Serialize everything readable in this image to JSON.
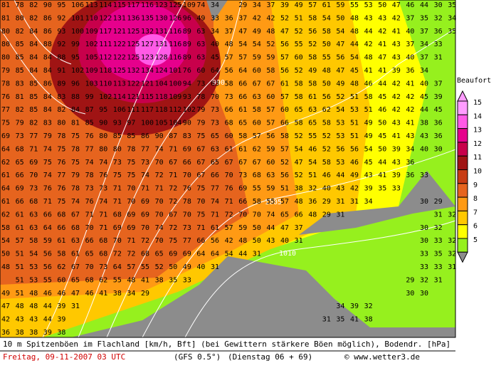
{
  "grid": [
    [
      81,
      78,
      82,
      90,
      95,
      106,
      113,
      114,
      115,
      117,
      116,
      123,
      125,
      109,
      74,
      34,
      null,
      29,
      34,
      37,
      39,
      49,
      57,
      61,
      59,
      55,
      53,
      50,
      47,
      46,
      44,
      30,
      35
    ],
    [
      81,
      80,
      82,
      86,
      92,
      101,
      110,
      122,
      131,
      136,
      135,
      130,
      126,
      96,
      49,
      33,
      36,
      37,
      42,
      42,
      52,
      51,
      58,
      54,
      50,
      48,
      43,
      43,
      42,
      37,
      35,
      32,
      34
    ],
    [
      80,
      82,
      84,
      86,
      93,
      100,
      109,
      117,
      121,
      125,
      132,
      131,
      116,
      89,
      63,
      34,
      37,
      47,
      49,
      48,
      47,
      52,
      56,
      58,
      54,
      48,
      44,
      42,
      41,
      40,
      37,
      36,
      35
    ],
    [
      80,
      85,
      84,
      88,
      92,
      99,
      102,
      111,
      122,
      125,
      127,
      131,
      116,
      89,
      63,
      40,
      48,
      54,
      54,
      52,
      56,
      55,
      52,
      50,
      47,
      44,
      42,
      41,
      43,
      37,
      34,
      33,
      null
    ],
    [
      80,
      85,
      84,
      84,
      88,
      95,
      105,
      112,
      122,
      125,
      123,
      128,
      116,
      89,
      63,
      45,
      57,
      57,
      59,
      59,
      57,
      60,
      58,
      55,
      56,
      54,
      48,
      47,
      43,
      40,
      37,
      31,
      null
    ],
    [
      79,
      85,
      84,
      84,
      91,
      102,
      109,
      118,
      125,
      132,
      134,
      124,
      101,
      76,
      60,
      64,
      56,
      64,
      60,
      58,
      56,
      52,
      49,
      48,
      47,
      45,
      41,
      41,
      39,
      36,
      34,
      null,
      null
    ],
    [
      78,
      83,
      85,
      86,
      89,
      96,
      103,
      110,
      113,
      122,
      121,
      104,
      100,
      94,
      73,
      63,
      58,
      66,
      67,
      67,
      61,
      58,
      58,
      50,
      49,
      48,
      46,
      44,
      42,
      41,
      40,
      37,
      null
    ],
    [
      76,
      81,
      85,
      84,
      83,
      88,
      99,
      102,
      114,
      121,
      115,
      118,
      109,
      93,
      78,
      70,
      73,
      66,
      63,
      60,
      57,
      58,
      61,
      56,
      52,
      51,
      58,
      45,
      42,
      42,
      45,
      39,
      null
    ],
    [
      77,
      82,
      85,
      84,
      82,
      84,
      87,
      95,
      106,
      111,
      117,
      118,
      112,
      102,
      79,
      73,
      66,
      61,
      58,
      57,
      60,
      65,
      63,
      62,
      54,
      53,
      51,
      46,
      42,
      42,
      44,
      45,
      null
    ],
    [
      75,
      79,
      82,
      83,
      80,
      81,
      85,
      90,
      93,
      97,
      100,
      105,
      104,
      90,
      79,
      73,
      68,
      65,
      60,
      57,
      66,
      58,
      65,
      58,
      53,
      51,
      49,
      50,
      43,
      41,
      38,
      36,
      null
    ],
    [
      69,
      73,
      77,
      79,
      78,
      75,
      76,
      80,
      85,
      85,
      86,
      90,
      87,
      83,
      75,
      65,
      60,
      58,
      57,
      56,
      58,
      52,
      55,
      52,
      53,
      51,
      49,
      45,
      41,
      43,
      43,
      36,
      null
    ],
    [
      64,
      68,
      71,
      74,
      75,
      78,
      77,
      80,
      80,
      78,
      77,
      74,
      71,
      69,
      67,
      63,
      61,
      61,
      62,
      59,
      57,
      54,
      46,
      52,
      56,
      56,
      54,
      50,
      39,
      34,
      40,
      30,
      null
    ],
    [
      62,
      65,
      69,
      75,
      76,
      75,
      74,
      74,
      73,
      75,
      73,
      70,
      67,
      66,
      67,
      65,
      67,
      67,
      67,
      60,
      52,
      47,
      54,
      58,
      53,
      46,
      45,
      44,
      43,
      36,
      null,
      null,
      null
    ],
    [
      61,
      66,
      70,
      74,
      77,
      79,
      78,
      76,
      75,
      75,
      74,
      72,
      71,
      70,
      67,
      66,
      70,
      73,
      68,
      63,
      56,
      52,
      51,
      46,
      44,
      49,
      43,
      41,
      39,
      36,
      33,
      null,
      null
    ],
    [
      64,
      69,
      73,
      76,
      76,
      78,
      73,
      73,
      71,
      70,
      71,
      71,
      72,
      76,
      75,
      77,
      76,
      69,
      55,
      59,
      51,
      38,
      32,
      40,
      43,
      42,
      39,
      35,
      33,
      null,
      null,
      null,
      null
    ],
    [
      61,
      66,
      68,
      71,
      75,
      74,
      76,
      74,
      71,
      70,
      69,
      70,
      72,
      78,
      70,
      74,
      71,
      66,
      58,
      55,
      57,
      48,
      36,
      29,
      31,
      31,
      34,
      null,
      null,
      null,
      30,
      29,
      null
    ],
    [
      62,
      61,
      63,
      66,
      68,
      67,
      71,
      71,
      68,
      69,
      69,
      70,
      67,
      70,
      75,
      71,
      72,
      70,
      70,
      74,
      65,
      66,
      48,
      29,
      31,
      null,
      null,
      null,
      null,
      null,
      null,
      31,
      32
    ],
    [
      58,
      61,
      63,
      64,
      66,
      68,
      70,
      71,
      69,
      69,
      70,
      74,
      72,
      73,
      71,
      61,
      57,
      59,
      50,
      44,
      47,
      37,
      null,
      null,
      null,
      null,
      null,
      null,
      null,
      null,
      30,
      32,
      null
    ],
    [
      54,
      57,
      58,
      59,
      61,
      63,
      66,
      68,
      70,
      71,
      72,
      70,
      75,
      77,
      66,
      56,
      42,
      48,
      50,
      43,
      40,
      31,
      null,
      null,
      null,
      null,
      null,
      null,
      null,
      null,
      30,
      33,
      32
    ],
    [
      50,
      51,
      54,
      56,
      58,
      61,
      65,
      68,
      72,
      72,
      68,
      65,
      69,
      69,
      64,
      64,
      54,
      44,
      31,
      null,
      null,
      null,
      null,
      null,
      null,
      null,
      null,
      null,
      null,
      null,
      33,
      35,
      32
    ],
    [
      48,
      51,
      53,
      56,
      62,
      67,
      70,
      73,
      64,
      57,
      55,
      52,
      50,
      49,
      40,
      31,
      null,
      null,
      null,
      null,
      null,
      null,
      null,
      null,
      null,
      null,
      null,
      null,
      null,
      null,
      33,
      33,
      31
    ],
    [
      null,
      51,
      53,
      55,
      60,
      65,
      68,
      62,
      55,
      48,
      41,
      38,
      35,
      33,
      null,
      null,
      null,
      null,
      null,
      null,
      null,
      null,
      null,
      null,
      null,
      null,
      null,
      null,
      null,
      29,
      32,
      31,
      null
    ],
    [
      49,
      51,
      48,
      46,
      46,
      47,
      46,
      41,
      38,
      34,
      29,
      null,
      null,
      null,
      null,
      null,
      null,
      null,
      null,
      null,
      null,
      null,
      null,
      null,
      null,
      null,
      null,
      null,
      null,
      30,
      30,
      null,
      null
    ],
    [
      47,
      48,
      48,
      44,
      39,
      31,
      null,
      null,
      null,
      null,
      null,
      null,
      null,
      null,
      null,
      null,
      null,
      null,
      null,
      null,
      null,
      null,
      null,
      null,
      34,
      39,
      32,
      null,
      null,
      null,
      null,
      null,
      null
    ],
    [
      42,
      43,
      43,
      44,
      39,
      null,
      null,
      null,
      null,
      null,
      null,
      null,
      null,
      null,
      null,
      null,
      null,
      null,
      null,
      null,
      null,
      null,
      null,
      31,
      35,
      41,
      38,
      null,
      null,
      null,
      null,
      null,
      null
    ],
    [
      36,
      38,
      38,
      39,
      38,
      null,
      null,
      null,
      null,
      null,
      null,
      null,
      null,
      null,
      null,
      null,
      null,
      null,
      null,
      null,
      null,
      null,
      null,
      null,
      null,
      null,
      null,
      null,
      null,
      null,
      null,
      null,
      null
    ]
  ],
  "isobar_labels": [
    "990",
    "1005",
    "1010"
  ],
  "legend": {
    "title": "Beaufort",
    "levels": [
      {
        "label": "15",
        "color": "#ff9cff"
      },
      {
        "label": "14",
        "color": "#ff5ae6"
      },
      {
        "label": "13",
        "color": "#e6008c"
      },
      {
        "label": "12",
        "color": "#c8004b"
      },
      {
        "label": "11",
        "color": "#a01414"
      },
      {
        "label": "10",
        "color": "#c83c14"
      },
      {
        "label": "9",
        "color": "#e6641e"
      },
      {
        "label": "8",
        "color": "#ff9a14"
      },
      {
        "label": "7",
        "color": "#ffc800"
      },
      {
        "label": "6",
        "color": "#ffff00"
      },
      {
        "label": "5",
        "color": "#96f01e"
      }
    ]
  },
  "footer": {
    "caption": "10 m Spitzenböen im Flachland [km/h, Bft] (bei Gewittern stärkere Böen möglich), Bodendr. [hPa]",
    "date": "Freitag, 09-11-2007  03 UTC",
    "model": "(GFS 0.5°)",
    "run": "(Dienstag 06 + 69)",
    "credit": "© www.wetter3.de"
  }
}
